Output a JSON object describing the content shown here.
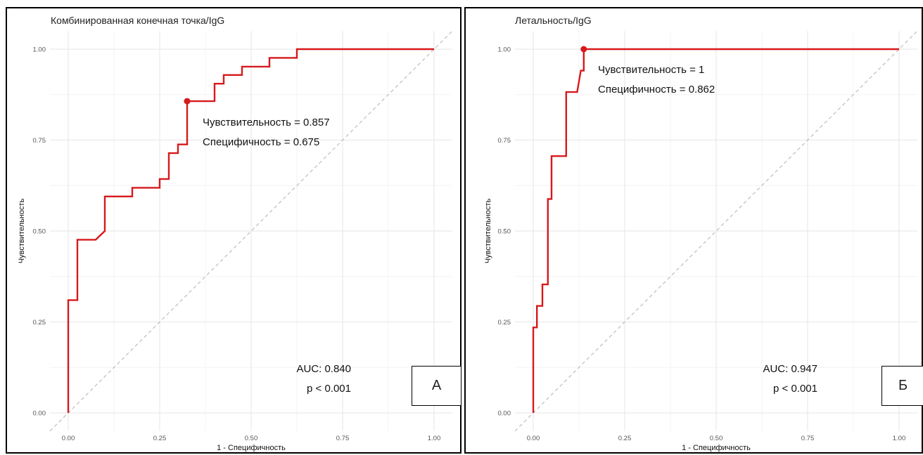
{
  "chart_data": [
    {
      "type": "line",
      "panel_label": "А",
      "title": "Комбинированная конечная точка/IgG",
      "xlabel": "1 - Специфичность",
      "ylabel": "Чувствительность",
      "xlim": [
        0,
        1
      ],
      "ylim": [
        0,
        1
      ],
      "x_ticks": [
        "0.00",
        "0.25",
        "0.50",
        "0.75",
        "1.00"
      ],
      "y_ticks": [
        "0.00",
        "0.25",
        "0.50",
        "0.75",
        "1.00"
      ],
      "grid": true,
      "series": [
        {
          "color": "#d7191c",
          "x": [
            0,
            0,
            0.025,
            0.025,
            0.075,
            0.1,
            0.1,
            0.175,
            0.175,
            0.25,
            0.25,
            0.275,
            0.275,
            0.3,
            0.3,
            0.325,
            0.325,
            0.4,
            0.4,
            0.425,
            0.425,
            0.475,
            0.475,
            0.55,
            0.55,
            0.625,
            0.625,
            1.0
          ],
          "y": [
            0,
            0.31,
            0.31,
            0.476,
            0.476,
            0.5,
            0.595,
            0.595,
            0.619,
            0.619,
            0.643,
            0.643,
            0.714,
            0.714,
            0.738,
            0.738,
            0.857,
            0.857,
            0.905,
            0.905,
            0.929,
            0.929,
            0.952,
            0.952,
            0.976,
            0.976,
            1.0,
            1.0
          ]
        }
      ],
      "reference_line": {
        "x": [
          0,
          1
        ],
        "y": [
          0,
          1
        ],
        "style": "dashed"
      },
      "cutoff_point": {
        "x": 0.325,
        "y": 0.857
      },
      "annotations": {
        "sens": "Чувствительность = 0.857",
        "spec": "Специфичность = 0.675",
        "auc": "AUC: 0.840",
        "p": "p  < 0.001"
      }
    },
    {
      "type": "line",
      "panel_label": "Б",
      "title": "Летальность/IgG",
      "xlabel": "1 - Специфичность",
      "ylabel": "Чувствительность",
      "xlim": [
        0,
        1
      ],
      "ylim": [
        0,
        1
      ],
      "x_ticks": [
        "0.00",
        "0.25",
        "0.50",
        "0.75",
        "1.00"
      ],
      "y_ticks": [
        "0.00",
        "0.25",
        "0.50",
        "0.75",
        "1.00"
      ],
      "grid": true,
      "series": [
        {
          "color": "#d7191c",
          "x": [
            0,
            0,
            0.01,
            0.01,
            0.025,
            0.025,
            0.04,
            0.04,
            0.05,
            0.05,
            0.06,
            0.06,
            0.09,
            0.09,
            0.12,
            0.13,
            0.138,
            0.138,
            1.0
          ],
          "y": [
            0,
            0.235,
            0.235,
            0.294,
            0.294,
            0.353,
            0.353,
            0.588,
            0.588,
            0.706,
            0.706,
            0.706,
            0.706,
            0.882,
            0.882,
            0.941,
            0.941,
            1.0,
            1.0
          ]
        }
      ],
      "reference_line": {
        "x": [
          0,
          1
        ],
        "y": [
          0,
          1
        ],
        "style": "dashed"
      },
      "cutoff_point": {
        "x": 0.138,
        "y": 1.0
      },
      "annotations": {
        "sens": "Чувствительность = 1",
        "spec": "Специфичность = 0.862",
        "auc": "AUC: 0.947",
        "p": "p  < 0.001"
      }
    }
  ]
}
